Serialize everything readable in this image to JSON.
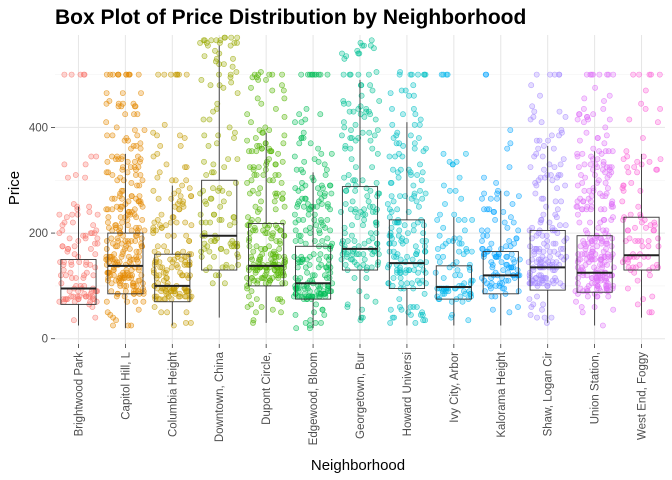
{
  "chart_data": {
    "type": "box",
    "title": "Box Plot of Price Distribution by Neighborhood",
    "xlabel": "Neighborhood",
    "ylabel": "Price",
    "ylim": [
      -10,
      575
    ],
    "yticks": [
      0,
      200,
      400
    ],
    "grid": true,
    "legend": "none",
    "categories": [
      "Brightwood Park",
      "Capitol Hill, L",
      "Columbia Height",
      "Downtown, China",
      "Dupont Circle,",
      "Edgewood, Bloom",
      "Georgetown, Bur",
      "Howard Universi",
      "Ivy City, Arbor",
      "Kalorama Height",
      "Shaw, Logan Cir",
      "Union Station,",
      "West End, Foggy"
    ],
    "colors": [
      "#F8766D",
      "#E38900",
      "#C49A00",
      "#99A800",
      "#53B400",
      "#00BC56",
      "#00C094",
      "#00BFC4",
      "#00B6EB",
      "#06A4FF",
      "#A58AFF",
      "#DF70F8",
      "#FB61D7"
    ],
    "box_stats": [
      {
        "whisker_low": 25,
        "q1": 65,
        "median": 95,
        "q3": 150,
        "whisker_high": 250
      },
      {
        "whisker_low": 20,
        "q1": 85,
        "median": 138,
        "q3": 200,
        "whisker_high": 350
      },
      {
        "whisker_low": 25,
        "q1": 70,
        "median": 100,
        "q3": 160,
        "whisker_high": 290
      },
      {
        "whisker_low": 40,
        "q1": 130,
        "median": 195,
        "q3": 300,
        "whisker_high": 555
      },
      {
        "whisker_low": 30,
        "q1": 100,
        "median": 138,
        "q3": 218,
        "whisker_high": 390
      },
      {
        "whisker_low": 20,
        "q1": 75,
        "median": 105,
        "q3": 175,
        "whisker_high": 315
      },
      {
        "whisker_low": 35,
        "q1": 130,
        "median": 170,
        "q3": 288,
        "whisker_high": 490
      },
      {
        "whisker_low": 25,
        "q1": 95,
        "median": 143,
        "q3": 225,
        "whisker_high": 410
      },
      {
        "whisker_low": 25,
        "q1": 75,
        "median": 98,
        "q3": 138,
        "whisker_high": 230
      },
      {
        "whisker_low": 25,
        "q1": 85,
        "median": 120,
        "q3": 165,
        "whisker_high": 280
      },
      {
        "whisker_low": 30,
        "q1": 92,
        "median": 135,
        "q3": 205,
        "whisker_high": 365
      },
      {
        "whisker_low": 25,
        "q1": 88,
        "median": 125,
        "q3": 195,
        "whisker_high": 355
      },
      {
        "whisker_low": 40,
        "q1": 130,
        "median": 158,
        "q3": 230,
        "whisker_high": 350
      }
    ],
    "points_per_group": [
      110,
      260,
      170,
      120,
      220,
      210,
      160,
      170,
      90,
      110,
      170,
      250,
      90
    ]
  }
}
